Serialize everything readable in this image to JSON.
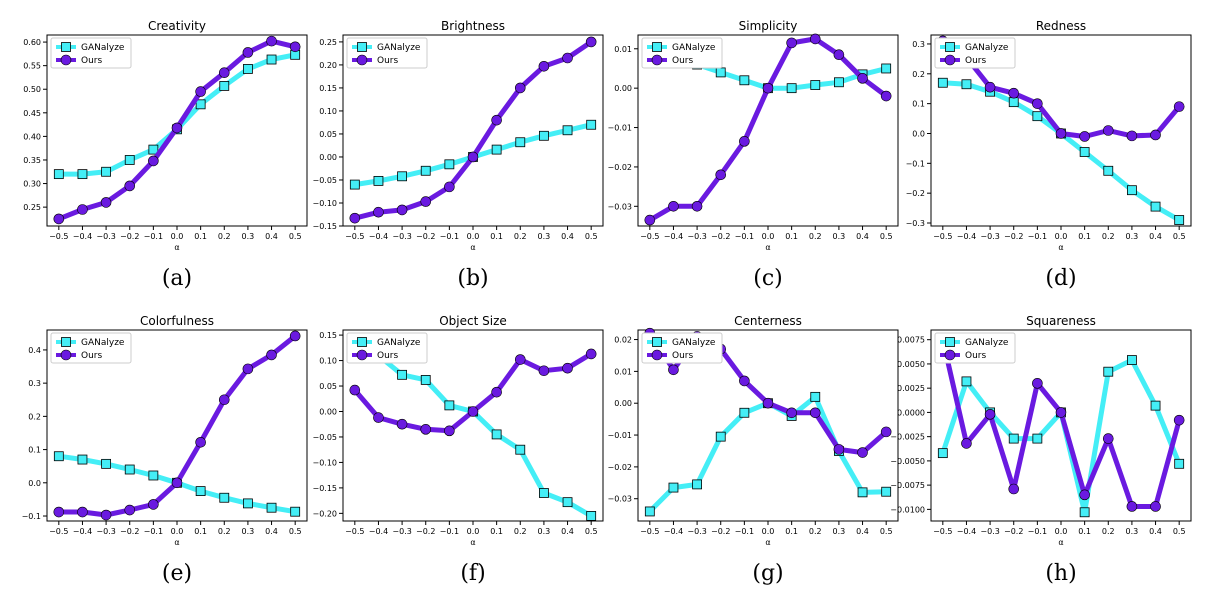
{
  "colors": {
    "ganalyze": "#44eef6",
    "ours": "#6a1ae0",
    "marker_edge": "#000000"
  },
  "legend": {
    "placement": "upper-left"
  },
  "chart_data": [
    {
      "type": "line",
      "title": "Creativity",
      "xlabel": "α",
      "caption": "(a)",
      "x": [
        -0.5,
        -0.4,
        -0.3,
        -0.2,
        -0.1,
        0.0,
        0.1,
        0.2,
        0.3,
        0.4,
        0.5
      ],
      "ylim": [
        0.21,
        0.615
      ],
      "yticks": [
        "0.25",
        "0.30",
        "0.35",
        "0.40",
        "0.45",
        "0.50",
        "0.55",
        "0.60"
      ],
      "series": [
        {
          "name": "GANalyze",
          "values": [
            0.32,
            0.32,
            0.325,
            0.35,
            0.372,
            0.415,
            0.468,
            0.507,
            0.543,
            0.563,
            0.573
          ]
        },
        {
          "name": "Ours",
          "values": [
            0.225,
            0.245,
            0.26,
            0.295,
            0.348,
            0.418,
            0.495,
            0.535,
            0.578,
            0.602,
            0.59
          ]
        }
      ]
    },
    {
      "type": "line",
      "title": "Brightness",
      "xlabel": "α",
      "caption": "(b)",
      "x": [
        -0.5,
        -0.4,
        -0.3,
        -0.2,
        -0.1,
        0.0,
        0.1,
        0.2,
        0.3,
        0.4,
        0.5
      ],
      "ylim": [
        -0.15,
        0.265
      ],
      "yticks": [
        "−0.15",
        "−0.10",
        "−0.05",
        "0.00",
        "0.05",
        "0.10",
        "0.15",
        "0.20",
        "0.25"
      ],
      "series": [
        {
          "name": "GANalyze",
          "values": [
            -0.06,
            -0.052,
            -0.042,
            -0.03,
            -0.016,
            0.0,
            0.016,
            0.032,
            0.046,
            0.058,
            0.07
          ]
        },
        {
          "name": "Ours",
          "values": [
            -0.133,
            -0.12,
            -0.115,
            -0.097,
            -0.065,
            0.0,
            0.08,
            0.15,
            0.197,
            0.215,
            0.25
          ]
        }
      ]
    },
    {
      "type": "line",
      "title": "Simplicity",
      "xlabel": "α",
      "caption": "(c)",
      "x": [
        -0.5,
        -0.4,
        -0.3,
        -0.2,
        -0.1,
        0.0,
        0.1,
        0.2,
        0.3,
        0.4,
        0.5
      ],
      "ylim": [
        -0.035,
        0.0135
      ],
      "yticks": [
        "−0.03",
        "−0.02",
        "−0.01",
        "0.00",
        "0.01"
      ],
      "series": [
        {
          "name": "GANalyze",
          "values": [
            0.0095,
            0.0085,
            0.006,
            0.004,
            0.002,
            0.0,
            0.0,
            0.0008,
            0.0015,
            0.0035,
            0.005
          ]
        },
        {
          "name": "Ours",
          "values": [
            -0.0335,
            -0.03,
            -0.03,
            -0.022,
            -0.0135,
            0.0,
            0.0115,
            0.0125,
            0.0085,
            0.0025,
            -0.002
          ]
        }
      ]
    },
    {
      "type": "line",
      "title": "Redness",
      "xlabel": "α",
      "caption": "(d)",
      "x": [
        -0.5,
        -0.4,
        -0.3,
        -0.2,
        -0.1,
        0.0,
        0.1,
        0.2,
        0.3,
        0.4,
        0.5
      ],
      "ylim": [
        -0.31,
        0.33
      ],
      "yticks": [
        "−0.3",
        "−0.2",
        "−0.1",
        "0.0",
        "0.1",
        "0.2",
        "0.3"
      ],
      "series": [
        {
          "name": "GANalyze",
          "values": [
            0.17,
            0.165,
            0.14,
            0.105,
            0.058,
            0.0,
            -0.062,
            -0.125,
            -0.19,
            -0.245,
            -0.29
          ]
        },
        {
          "name": "Ours",
          "values": [
            0.31,
            0.255,
            0.155,
            0.135,
            0.1,
            0.0,
            -0.01,
            0.01,
            -0.008,
            -0.005,
            0.09
          ]
        }
      ]
    },
    {
      "type": "line",
      "title": "Colorfulness",
      "xlabel": "α",
      "caption": "(e)",
      "x": [
        -0.5,
        -0.4,
        -0.3,
        -0.2,
        -0.1,
        0.0,
        0.1,
        0.2,
        0.3,
        0.4,
        0.5
      ],
      "ylim": [
        -0.115,
        0.46
      ],
      "yticks": [
        "−0.1",
        "0.0",
        "0.1",
        "0.2",
        "0.3",
        "0.4"
      ],
      "series": [
        {
          "name": "GANalyze",
          "values": [
            0.08,
            0.07,
            0.057,
            0.04,
            0.022,
            0.0,
            -0.025,
            -0.045,
            -0.062,
            -0.075,
            -0.087
          ]
        },
        {
          "name": "Ours",
          "values": [
            -0.088,
            -0.088,
            -0.097,
            -0.082,
            -0.065,
            0.0,
            0.122,
            0.25,
            0.343,
            0.385,
            0.442
          ]
        }
      ]
    },
    {
      "type": "line",
      "title": "Object Size",
      "xlabel": "α",
      "caption": "(f)",
      "x": [
        -0.5,
        -0.4,
        -0.3,
        -0.2,
        -0.1,
        0.0,
        0.1,
        0.2,
        0.3,
        0.4,
        0.5
      ],
      "ylim": [
        -0.215,
        0.16
      ],
      "yticks": [
        "−0.20",
        "−0.15",
        "−0.10",
        "−0.05",
        "0.00",
        "0.05",
        "0.10",
        "0.15"
      ],
      "series": [
        {
          "name": "GANalyze",
          "values": [
            0.14,
            0.11,
            0.072,
            0.062,
            0.012,
            0.0,
            -0.045,
            -0.075,
            -0.16,
            -0.178,
            -0.205
          ]
        },
        {
          "name": "Ours",
          "values": [
            0.042,
            -0.012,
            -0.025,
            -0.035,
            -0.038,
            0.0,
            0.038,
            0.102,
            0.08,
            0.085,
            0.113
          ]
        }
      ]
    },
    {
      "type": "line",
      "title": "Centerness",
      "xlabel": "α",
      "caption": "(g)",
      "x": [
        -0.5,
        -0.4,
        -0.3,
        -0.2,
        -0.1,
        0.0,
        0.1,
        0.2,
        0.3,
        0.4,
        0.5
      ],
      "ylim": [
        -0.037,
        0.023
      ],
      "yticks": [
        "−0.03",
        "−0.02",
        "−0.01",
        "0.00",
        "0.01",
        "0.02"
      ],
      "series": [
        {
          "name": "GANalyze",
          "values": [
            -0.034,
            -0.0265,
            -0.0255,
            -0.0105,
            -0.003,
            0.0,
            -0.004,
            0.002,
            -0.015,
            -0.028,
            -0.0278
          ]
        },
        {
          "name": "Ours",
          "values": [
            0.022,
            0.0105,
            0.021,
            0.017,
            0.007,
            0.0,
            -0.003,
            -0.003,
            -0.0145,
            -0.0155,
            -0.009
          ]
        }
      ]
    },
    {
      "type": "line",
      "title": "Squareness",
      "xlabel": "α",
      "caption": "(h)",
      "x": [
        -0.5,
        -0.4,
        -0.3,
        -0.2,
        -0.1,
        0.0,
        0.1,
        0.2,
        0.3,
        0.4,
        0.5
      ],
      "ylim": [
        -0.0112,
        0.0085
      ],
      "yticks": [
        "−0.0100",
        "−0.0075",
        "−0.0050",
        "−0.0025",
        "0.0000",
        "0.0025",
        "0.0050",
        "0.0075"
      ],
      "series": [
        {
          "name": "GANalyze",
          "values": [
            -0.0042,
            0.0032,
            0.0,
            -0.0027,
            -0.0027,
            0.0,
            -0.0103,
            0.0042,
            0.0054,
            0.0007,
            -0.0053
          ]
        },
        {
          "name": "Ours",
          "values": [
            0.0075,
            -0.0032,
            -0.0002,
            -0.0079,
            0.003,
            0.0,
            -0.0085,
            -0.0027,
            -0.0097,
            -0.0097,
            -0.0008
          ]
        }
      ]
    }
  ]
}
